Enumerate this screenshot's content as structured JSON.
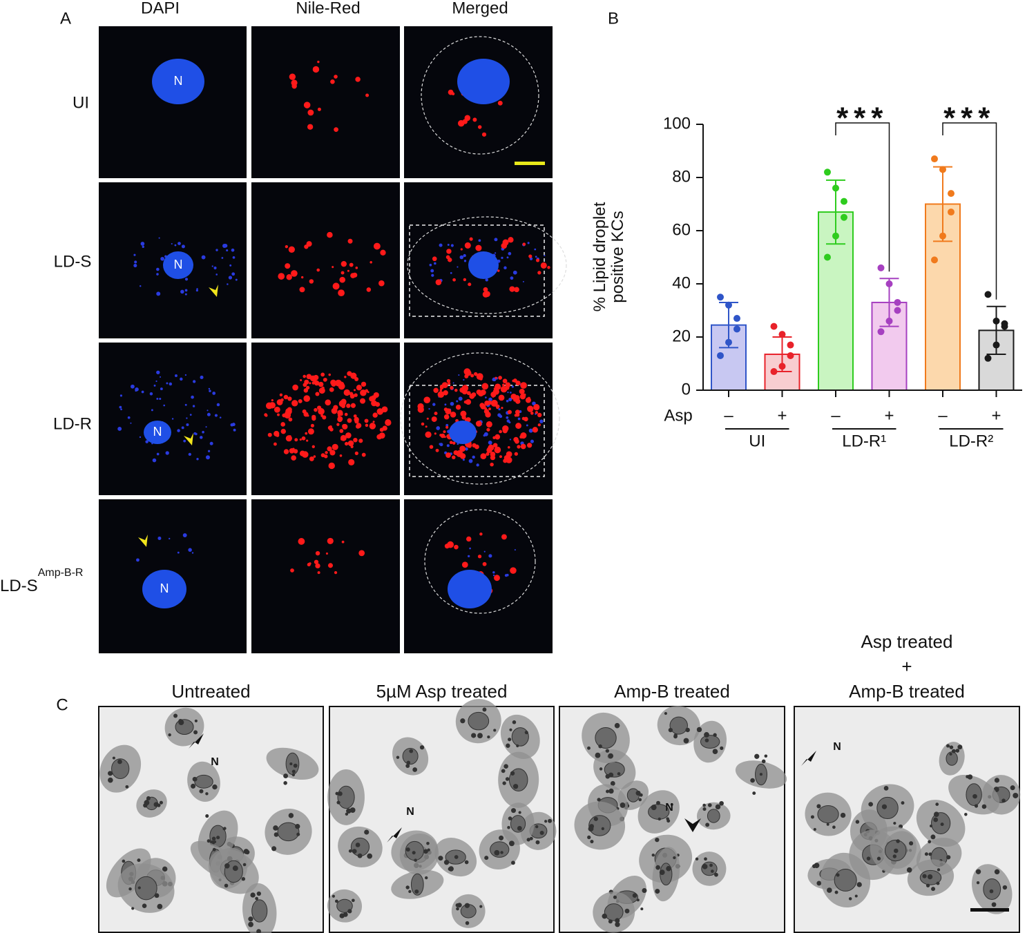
{
  "panel_a": {
    "label": "A",
    "column_headers": [
      "DAPI",
      "Nile-Red",
      "Merged"
    ],
    "row_labels": [
      "UI",
      "LD-S",
      "LD-R",
      {
        "text": "LD-S",
        "superscript": "Amp-B-R"
      }
    ],
    "nucleus_labels": [
      "N",
      "N",
      "N",
      "N"
    ]
  },
  "chart_data": {
    "type": "bar",
    "panel_label": "B",
    "ylabel": [
      "% Lipid droplet",
      "positive KCs"
    ],
    "ylim": [
      0,
      100
    ],
    "yticks": [
      0,
      20,
      40,
      60,
      80,
      100
    ],
    "factor_label": "Asp",
    "categories": [
      "–",
      "+",
      "–",
      "+",
      "–",
      "+"
    ],
    "groups": [
      {
        "name": "UI",
        "bars": [
          0,
          1
        ]
      },
      {
        "name": "LD-R¹",
        "bars": [
          2,
          3
        ]
      },
      {
        "name": "LD-R²",
        "bars": [
          4,
          5
        ]
      }
    ],
    "values": [
      24.5,
      13.5,
      67,
      33,
      70,
      22.5
    ],
    "errors": [
      8.5,
      6.5,
      12,
      9,
      14,
      9
    ],
    "points": [
      [
        35,
        32,
        27,
        23,
        18,
        13
      ],
      [
        24,
        21,
        17,
        13,
        9,
        7
      ],
      [
        82,
        76,
        71,
        65,
        58,
        50
      ],
      [
        46,
        40,
        33,
        30,
        26,
        22
      ],
      [
        87,
        83,
        74,
        67,
        58,
        49
      ],
      [
        36,
        26,
        25,
        24,
        17,
        12
      ]
    ],
    "colors": [
      "#2f55c8",
      "#e8222a",
      "#2ecc1e",
      "#a640c0",
      "#f07a1c",
      "#1a1a1a"
    ],
    "fills": [
      "#c8c8f2",
      "#f8cdd0",
      "#c9f5c1",
      "#f2caee",
      "#fcd8ac",
      "#d9d9d9"
    ],
    "significance": [
      {
        "bars": [
          2,
          3
        ],
        "label": "***"
      },
      {
        "bars": [
          4,
          5
        ],
        "label": "***"
      }
    ]
  },
  "panel_c": {
    "label": "C",
    "titles": [
      [
        "Untreated"
      ],
      [
        "5µM Asp treated"
      ],
      [
        "Amp-B treated"
      ],
      [
        "Asp treated",
        "+",
        "Amp-B treated"
      ]
    ],
    "nucleus_labels": [
      "N",
      "N",
      "N",
      "N"
    ]
  }
}
